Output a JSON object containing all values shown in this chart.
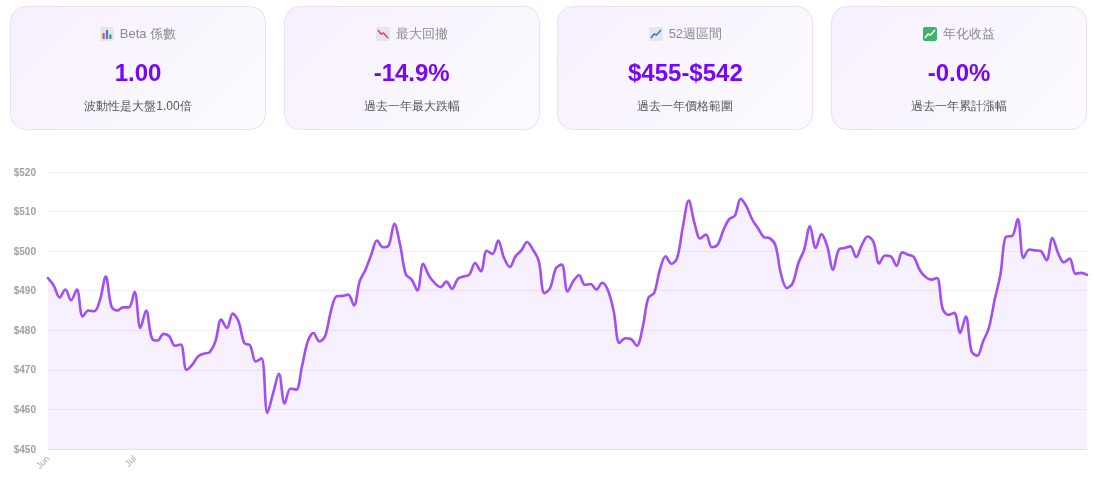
{
  "chart_data": [
    {
      "type": "other",
      "title": "Beta 係數",
      "annotations": [
        "1.00",
        "波動性是大盤1.00倍"
      ]
    },
    {
      "type": "other",
      "title": "最大回撤",
      "annotations": [
        "-14.9%",
        "過去一年最大跌幅"
      ]
    },
    {
      "type": "other",
      "title": "52週區間",
      "annotations": [
        "$455-$542",
        "過去一年價格範圍"
      ]
    },
    {
      "type": "other",
      "title": "年化收益",
      "annotations": [
        "-0.0%",
        "過去一年累計漲幅"
      ]
    },
    {
      "type": "area",
      "color": "#a04ef6",
      "marker": "none",
      "grid": "y",
      "ylim": [
        450,
        520
      ],
      "yticks": [
        {
          "value": 450,
          "label": "$450"
        },
        {
          "value": 460,
          "label": "$460"
        },
        {
          "value": 470,
          "label": "$470"
        },
        {
          "value": 480,
          "label": "$480"
        },
        {
          "value": 490,
          "label": "$490"
        },
        {
          "value": 500,
          "label": "$500"
        },
        {
          "value": 510,
          "label": "$510"
        },
        {
          "value": 520,
          "label": "$520"
        }
      ],
      "categories": [
        "Jun",
        null,
        null,
        null,
        null,
        null,
        null,
        null,
        null,
        null,
        null,
        null,
        null,
        null,
        null,
        "Jul",
        null,
        null,
        null,
        null,
        null,
        null,
        null,
        null,
        null,
        null,
        null,
        null,
        null,
        null,
        null,
        null,
        null,
        null,
        null,
        null,
        null,
        null,
        null,
        null,
        null,
        null,
        null,
        null,
        null,
        null,
        null,
        null,
        null,
        null,
        null,
        null,
        null,
        null,
        null,
        null,
        null,
        null,
        null,
        null,
        null,
        null,
        null,
        null,
        null,
        null,
        null,
        null,
        null,
        null,
        null,
        null,
        null,
        null,
        null,
        null,
        null,
        null,
        null,
        null,
        null,
        null,
        null,
        null,
        null,
        null,
        null,
        null,
        null,
        null,
        null,
        null,
        null,
        null,
        null,
        null,
        null,
        null,
        null,
        null,
        null,
        null,
        null,
        null,
        null,
        null,
        null,
        null,
        null,
        null,
        null,
        null,
        null,
        null,
        null,
        null,
        null,
        null,
        null,
        null,
        null,
        null,
        null,
        null,
        null,
        null,
        null,
        null,
        null,
        null,
        null,
        null,
        null,
        null,
        null,
        null,
        null,
        null,
        null,
        null,
        null,
        null,
        null,
        null,
        null,
        null,
        null,
        null,
        null,
        null,
        null,
        null,
        null,
        null,
        null,
        null,
        null,
        null,
        null,
        null,
        null,
        null,
        null,
        null,
        null,
        null,
        null,
        null,
        null,
        null,
        null,
        null,
        null,
        null,
        null,
        null,
        null,
        null,
        null,
        null,
        null
      ],
      "values": [
        493.2,
        491.3,
        488.3,
        490.3,
        487.6,
        490.3,
        483.5,
        485.0,
        484.8,
        487.7,
        493.6,
        486.0,
        485.0,
        485.8,
        485.8,
        489.7,
        480.6,
        485.0,
        478.0,
        477.4,
        479.1,
        478.5,
        476.1,
        476.4,
        470.0,
        471.3,
        473.4,
        474.1,
        474.5,
        477.2,
        482.7,
        480.6,
        484.2,
        482.3,
        476.8,
        476.2,
        472.1,
        472.9,
        459.1,
        464.1,
        469.0,
        461.5,
        465.3,
        465.0,
        470.9,
        477.2,
        479.3,
        477.2,
        478.5,
        484.8,
        488.6,
        488.7,
        489.0,
        486.3,
        492.4,
        495.3,
        499.1,
        502.7,
        501.0,
        501.4,
        506.9,
        501.6,
        494.1,
        492.8,
        490.1,
        496.8,
        493.8,
        491.9,
        490.9,
        492.3,
        490.5,
        493.0,
        493.6,
        494.1,
        497.0,
        494.9,
        500.1,
        499.3,
        502.7,
        498.3,
        496.0,
        498.7,
        500.2,
        502.3,
        500.4,
        497.6,
        489.4,
        490.7,
        495.7,
        496.6,
        489.8,
        492.4,
        493.9,
        491.5,
        491.7,
        490.3,
        492.0,
        490.1,
        484.8,
        476.8,
        478.0,
        477.8,
        476.1,
        480.6,
        488.2,
        489.4,
        495.3,
        498.7,
        496.8,
        498.3,
        506.3,
        512.8,
        507.1,
        503.2,
        504.2,
        501.0,
        501.6,
        505.3,
        508.1,
        509.0,
        513.2,
        511.3,
        508.0,
        505.8,
        503.6,
        503.3,
        501.6,
        494.1,
        490.7,
        491.9,
        497.0,
        500.4,
        506.3,
        500.8,
        504.3,
        501.2,
        495.3,
        500.4,
        500.8,
        501.2,
        498.5,
        501.6,
        503.7,
        502.4,
        496.9,
        498.9,
        498.7,
        496.3,
        499.7,
        499.1,
        498.5,
        495.3,
        493.5,
        492.8,
        493.2,
        485.4,
        483.9,
        484.4,
        479.3,
        483.5,
        474.7,
        473.6,
        477.2,
        480.6,
        487.7,
        494.1,
        503.7,
        503.8,
        508.1,
        498.3,
        500.4,
        500.2,
        500.0,
        497.7,
        503.3,
        499.5,
        497.2,
        498.1,
        494.3,
        494.5,
        494.0
      ]
    }
  ]
}
